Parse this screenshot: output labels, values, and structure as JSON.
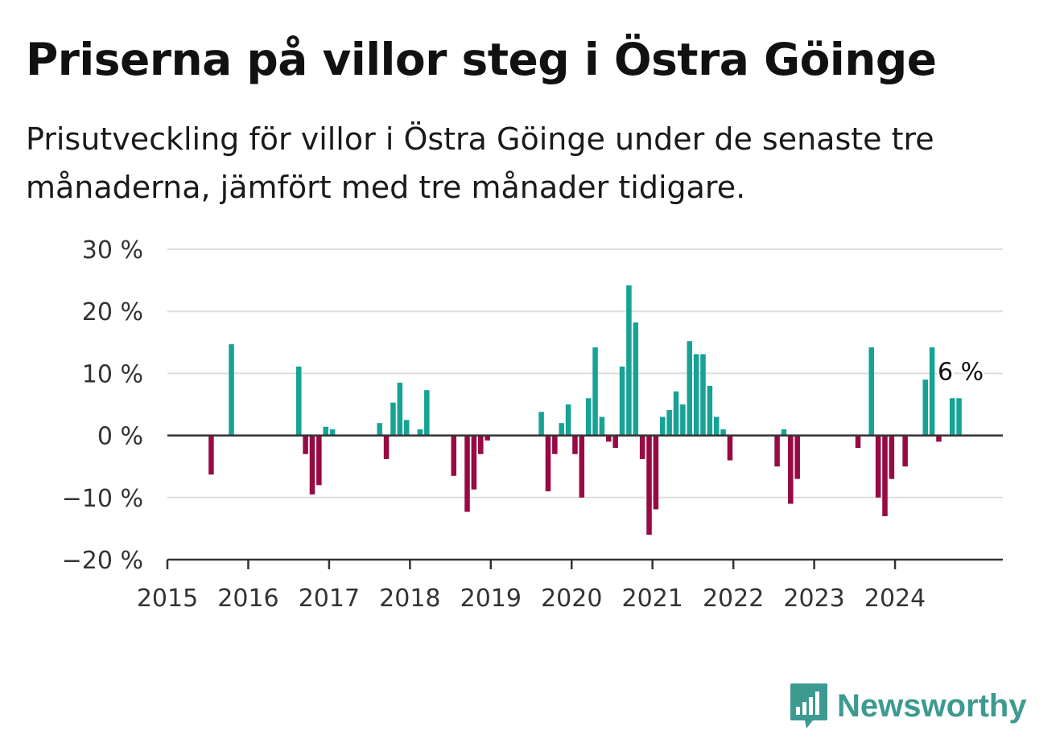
{
  "title": "Priserna på villor steg i Östra Göinge",
  "subtitle": "Prisutveckling för villor i Östra Göinge under de senaste tre månaderna, jämfört med tre månader tidigare.",
  "brand": {
    "name": "Newsworthy",
    "icon": "bar-chart-logo-icon"
  },
  "colors": {
    "positive": "#16a396",
    "negative": "#970a43",
    "grid": "#dddddd",
    "axis": "#333333",
    "brand": "#3d9a91"
  },
  "chart_data": {
    "type": "bar",
    "y_tick_labels": [
      "30 %",
      "20 %",
      "10 %",
      "0 %",
      "−10 %",
      "−20 %"
    ],
    "y_ticks": [
      30,
      20,
      10,
      0,
      -10,
      -20
    ],
    "x_tick_labels": [
      "2015",
      "2016",
      "2017",
      "2018",
      "2019",
      "2020",
      "2021",
      "2022",
      "2023",
      "2024"
    ],
    "ylim": [
      -20,
      30
    ],
    "xlim": [
      "2015-01",
      "2025-05"
    ],
    "grid": true,
    "last_label": "6 %",
    "x": [
      "2015-07",
      "2015-10",
      "2016-08",
      "2016-09",
      "2016-10",
      "2016-11",
      "2016-12",
      "2017-01",
      "2017-08",
      "2017-09",
      "2017-10",
      "2017-11",
      "2017-12",
      "2018-02",
      "2018-03",
      "2018-07",
      "2018-09",
      "2018-10",
      "2018-11",
      "2018-12",
      "2019-08",
      "2019-09",
      "2019-10",
      "2019-11",
      "2019-12",
      "2020-01",
      "2020-02",
      "2020-03",
      "2020-04",
      "2020-05",
      "2020-06",
      "2020-07",
      "2020-08",
      "2020-09",
      "2020-10",
      "2020-11",
      "2020-12",
      "2021-01",
      "2021-02",
      "2021-03",
      "2021-04",
      "2021-05",
      "2021-06",
      "2021-07",
      "2021-08",
      "2021-09",
      "2021-10",
      "2021-11",
      "2021-12",
      "2022-07",
      "2022-08",
      "2022-09",
      "2022-10",
      "2023-07",
      "2023-09",
      "2023-10",
      "2023-11",
      "2023-12",
      "2024-02",
      "2024-05",
      "2024-06",
      "2024-07",
      "2024-09",
      "2024-10"
    ],
    "values": [
      -6.3,
      14.7,
      11.1,
      -3,
      -9.5,
      -8,
      1.4,
      1,
      2,
      -3.8,
      5.3,
      8.5,
      2.5,
      1,
      7.3,
      -6.5,
      -12.3,
      -8.7,
      -3,
      -0.8,
      3.8,
      -9,
      -3,
      2,
      5,
      -3,
      -10,
      6,
      14.2,
      3,
      -1,
      -2,
      11.1,
      24.2,
      18.2,
      -3.8,
      -16,
      -11.9,
      3,
      4.1,
      7.1,
      5,
      15.2,
      13.1,
      13.1,
      8,
      3,
      1,
      -4,
      -5,
      1,
      -11,
      -7,
      -2,
      14.2,
      -10,
      -13,
      -7,
      -5,
      9,
      14.2,
      -1,
      6,
      6
    ]
  }
}
